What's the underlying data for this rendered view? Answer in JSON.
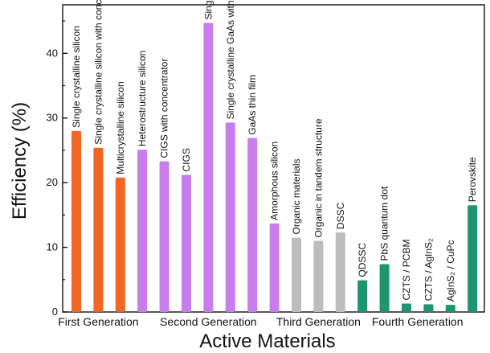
{
  "chart_data": {
    "type": "bar",
    "xlabel": "Active Materials",
    "ylabel": "Efficiency (%)",
    "ylim": [
      0,
      47.5
    ],
    "yticks": [
      "0",
      "10",
      "20",
      "30",
      "40"
    ],
    "grid": false,
    "colors": {
      "first": "#f26522",
      "second": "#c77dea",
      "third": "#bdbdbd",
      "fourth": "#1e9470"
    },
    "groups": [
      {
        "name": "First Generation",
        "key": "first"
      },
      {
        "name": "Second Generation",
        "key": "second"
      },
      {
        "name": "Third Generation",
        "key": "third"
      },
      {
        "name": "Fourth Generation",
        "key": "fourth"
      }
    ],
    "bars": [
      {
        "label": "Single crystalline silicon",
        "value": 28.0,
        "group": "first"
      },
      {
        "label": "Single crystalline silicon with concentrator",
        "value": 25.4,
        "group": "first"
      },
      {
        "label": "Multicrystalline silicon",
        "value": 20.8,
        "group": "first"
      },
      {
        "label": "Heterostructure silicon",
        "value": 25.1,
        "group": "second"
      },
      {
        "label": "CIGS with concentrator",
        "value": 23.3,
        "group": "second"
      },
      {
        "label": "CIGS",
        "value": 21.2,
        "group": "second"
      },
      {
        "label": "Single crystalline GaAs",
        "value": 44.7,
        "group": "second"
      },
      {
        "label": "Single crystalline GaAs with concentrator",
        "value": 29.3,
        "group": "second"
      },
      {
        "label": "GaAs thin film",
        "value": 26.9,
        "group": "second"
      },
      {
        "label": "Amorphous silicon",
        "value": 13.7,
        "group": "second"
      },
      {
        "label": "Organic materials",
        "value": 11.5,
        "group": "third"
      },
      {
        "label": "Organic in tandem structure",
        "value": 11.0,
        "group": "third"
      },
      {
        "label": "DSSC",
        "value": 12.3,
        "group": "third"
      },
      {
        "label": "QDSSC",
        "value": 4.9,
        "group": "fourth"
      },
      {
        "label": "PbS quantum dot",
        "value": 7.4,
        "group": "fourth"
      },
      {
        "label": "CZTS / PCBM",
        "value": 1.3,
        "group": "fourth"
      },
      {
        "label": "CZTS / AgInS₂",
        "value": 1.2,
        "group": "fourth"
      },
      {
        "label": "AgInS₂ / CuPc",
        "value": 1.1,
        "group": "fourth"
      },
      {
        "label": "Perovskite",
        "value": 16.5,
        "group": "fourth"
      }
    ]
  }
}
